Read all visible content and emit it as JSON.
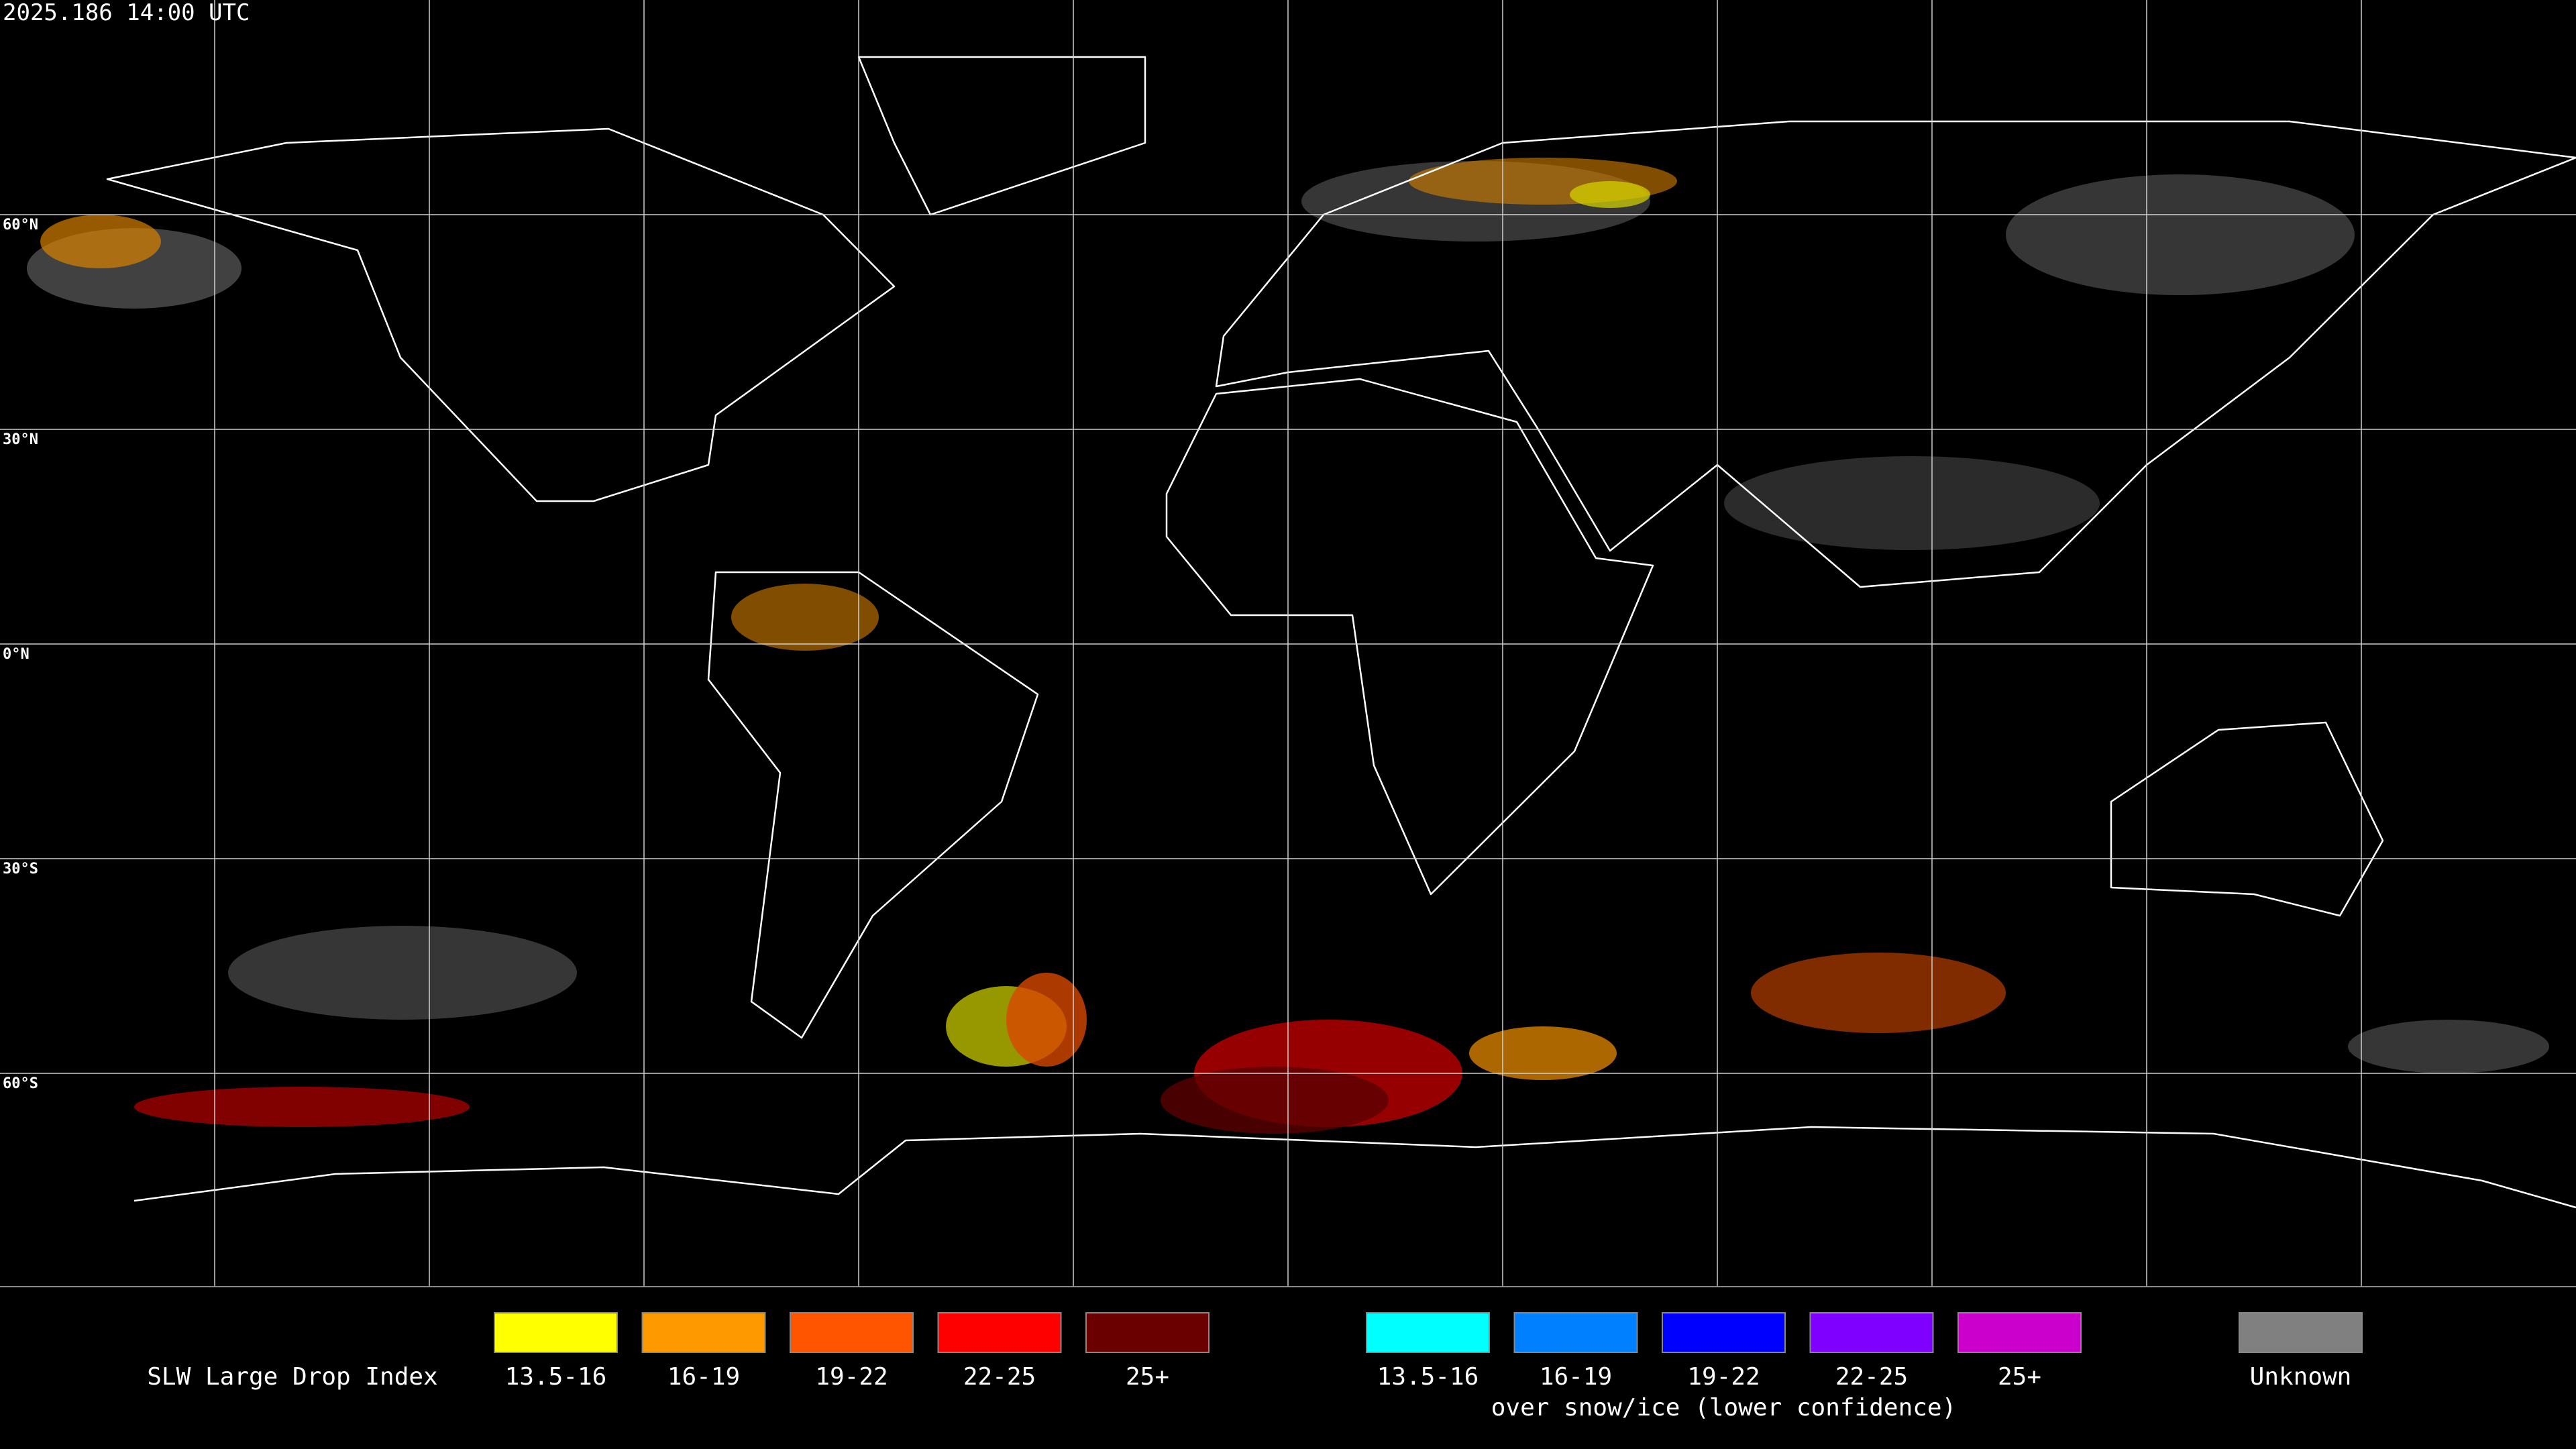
{
  "timestamp": "2025.186 14:00 UTC",
  "grid": {
    "latitude_labels": [
      "60°N",
      "30°N",
      "0°N",
      "30°S",
      "60°S"
    ]
  },
  "legend": {
    "title": "SLW Large Drop Index",
    "groups": [
      {
        "items": [
          {
            "label": "13.5-16",
            "color": "#ffff00"
          },
          {
            "label": "16-19",
            "color": "#ff9900"
          },
          {
            "label": "19-22",
            "color": "#ff5500"
          },
          {
            "label": "22-25",
            "color": "#ff0000"
          },
          {
            "label": "25+",
            "color": "#6b0000"
          }
        ]
      },
      {
        "items": [
          {
            "label": "13.5-16",
            "color": "#00ffff"
          },
          {
            "label": "16-19",
            "color": "#0080ff"
          },
          {
            "label": "19-22",
            "color": "#0000ff"
          },
          {
            "label": "22-25",
            "color": "#7f00ff"
          },
          {
            "label": "25+",
            "color": "#cc00cc"
          }
        ],
        "caption": "over snow/ice (lower confidence)"
      }
    ],
    "unknown": {
      "label": "Unknown",
      "color": "#808080"
    }
  }
}
